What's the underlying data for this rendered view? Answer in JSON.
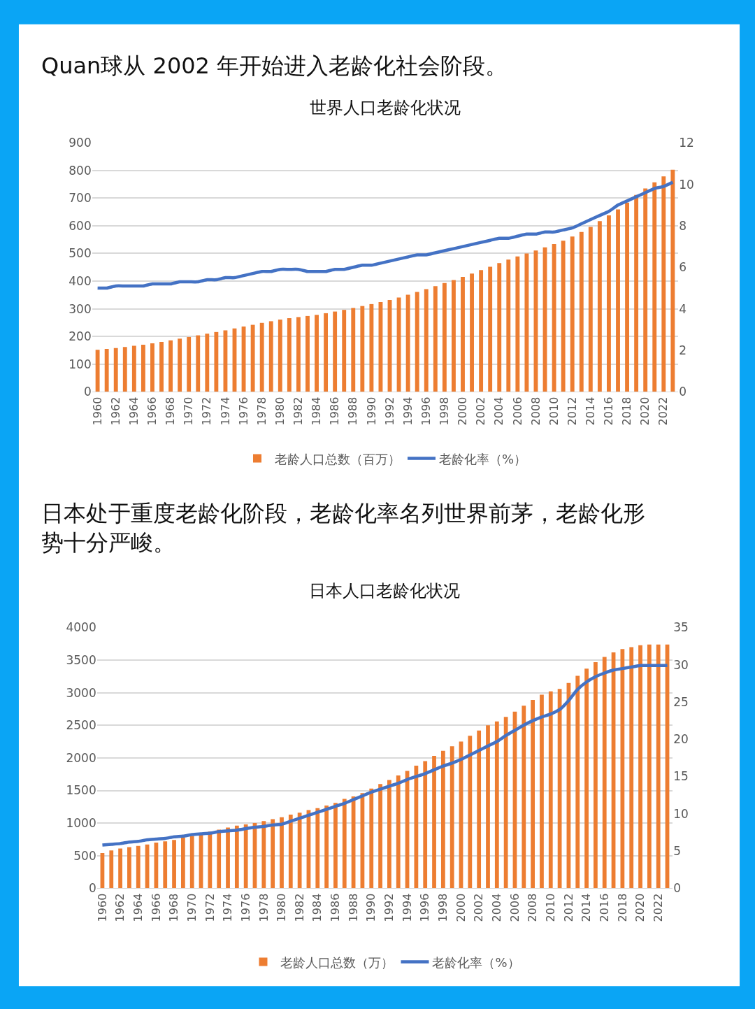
{
  "chart_data": [
    {
      "type": "bar",
      "title": "Quan球从 2002 年开始进入老龄化社会阶段。",
      "subtitle": "世界人口老龄化状况",
      "categories": [
        "1960",
        null,
        "1962",
        null,
        "1964",
        null,
        "1966",
        null,
        "1968",
        null,
        "1970",
        null,
        "1972",
        null,
        "1974",
        null,
        "1976",
        null,
        "1978",
        null,
        "1980",
        null,
        "1982",
        null,
        "1984",
        null,
        "1986",
        null,
        "1988",
        null,
        "1990",
        null,
        "1992",
        null,
        "1994",
        null,
        "1996",
        null,
        "1998",
        null,
        "2000",
        null,
        "2002",
        null,
        "2004",
        null,
        "2006",
        null,
        "2008",
        null,
        "2010",
        null,
        "2012",
        null,
        "2014",
        null,
        "2016",
        null,
        "2018",
        null,
        "2020",
        null,
        "2022",
        null
      ],
      "series": [
        {
          "name": "老龄人口总数（百万）",
          "color": "#ed7d31",
          "values": [
            152,
            155,
            158,
            162,
            166,
            170,
            175,
            180,
            186,
            192,
            198,
            204,
            210,
            216,
            222,
            229,
            236,
            242,
            249,
            255,
            261,
            266,
            270,
            274,
            278,
            284,
            290,
            296,
            303,
            310,
            317,
            324,
            332,
            341,
            351,
            361,
            371,
            382,
            393,
            404,
            415,
            427,
            440,
            452,
            465,
            478,
            489,
            500,
            511,
            522,
            534,
            546,
            561,
            578,
            596,
            617,
            638,
            659,
            684,
            712,
            735,
            757,
            779,
            803
          ]
        },
        {
          "name": "老龄化率（%）",
          "type": "line",
          "axis": "y2",
          "color": "#4472c4",
          "values": [
            5.0,
            5.0,
            5.1,
            5.1,
            5.1,
            5.1,
            5.2,
            5.2,
            5.2,
            5.3,
            5.3,
            5.3,
            5.4,
            5.4,
            5.5,
            5.5,
            5.6,
            5.7,
            5.8,
            5.8,
            5.9,
            5.9,
            5.9,
            5.8,
            5.8,
            5.8,
            5.9,
            5.9,
            6.0,
            6.1,
            6.1,
            6.2,
            6.3,
            6.4,
            6.5,
            6.6,
            6.6,
            6.7,
            6.8,
            6.9,
            7.0,
            7.1,
            7.2,
            7.3,
            7.4,
            7.4,
            7.5,
            7.6,
            7.6,
            7.7,
            7.7,
            7.8,
            7.9,
            8.1,
            8.3,
            8.5,
            8.7,
            9.0,
            9.2,
            9.4,
            9.6,
            9.8,
            9.9,
            10.1
          ]
        }
      ],
      "ylim": [
        0,
        900
      ],
      "yticks": [
        0,
        100,
        200,
        300,
        400,
        500,
        600,
        700,
        800,
        900
      ],
      "y2lim": [
        0,
        12
      ],
      "y2ticks": [
        0,
        2,
        4,
        6,
        8,
        10,
        12
      ],
      "grid": "y",
      "legend": "bottom"
    },
    {
      "type": "bar",
      "title": "日本处于重度老龄化阶段，老龄化率名列世界前茅，老龄化形势十分严峻。",
      "subtitle": "日本人口老龄化状况",
      "categories": [
        "1960",
        null,
        "1962",
        null,
        "1964",
        null,
        "1966",
        null,
        "1968",
        null,
        "1970",
        null,
        "1972",
        null,
        "1974",
        null,
        "1976",
        null,
        "1978",
        null,
        "1980",
        null,
        "1982",
        null,
        "1984",
        null,
        "1986",
        null,
        "1988",
        null,
        "1990",
        null,
        "1992",
        null,
        "1994",
        null,
        "1996",
        null,
        "1998",
        null,
        "2000",
        null,
        "2002",
        null,
        "2004",
        null,
        "2006",
        null,
        "2008",
        null,
        "2010",
        null,
        "2012",
        null,
        "2014",
        null,
        "2016",
        null,
        "2018",
        null,
        "2020",
        null,
        "2022",
        null
      ],
      "series": [
        {
          "name": "老龄人口总数（万）",
          "color": "#ed7d31",
          "values": [
            540,
            580,
            610,
            630,
            650,
            670,
            700,
            720,
            740,
            780,
            800,
            830,
            870,
            900,
            930,
            960,
            980,
            1000,
            1030,
            1060,
            1090,
            1130,
            1160,
            1200,
            1230,
            1270,
            1310,
            1370,
            1410,
            1460,
            1530,
            1600,
            1660,
            1730,
            1800,
            1880,
            1950,
            2030,
            2110,
            2180,
            2250,
            2340,
            2420,
            2500,
            2560,
            2630,
            2710,
            2800,
            2890,
            2970,
            3020,
            3060,
            3150,
            3260,
            3370,
            3470,
            3550,
            3620,
            3670,
            3700,
            3730,
            3740,
            3740,
            3740
          ]
        },
        {
          "name": "老龄化率（%）",
          "type": "line",
          "axis": "y2",
          "color": "#4472c4",
          "values": [
            5.8,
            5.9,
            6.0,
            6.2,
            6.3,
            6.5,
            6.6,
            6.7,
            6.9,
            7.0,
            7.2,
            7.3,
            7.4,
            7.6,
            7.7,
            7.8,
            8.0,
            8.2,
            8.3,
            8.5,
            8.6,
            9.0,
            9.4,
            9.8,
            10.2,
            10.6,
            11.0,
            11.4,
            11.9,
            12.4,
            12.9,
            13.3,
            13.7,
            14.1,
            14.6,
            15.0,
            15.4,
            15.9,
            16.4,
            16.8,
            17.3,
            17.9,
            18.5,
            19.1,
            19.7,
            20.5,
            21.2,
            21.9,
            22.5,
            23.0,
            23.4,
            24.0,
            25.2,
            26.7,
            27.7,
            28.4,
            28.9,
            29.3,
            29.5,
            29.7,
            29.9,
            29.9,
            29.9,
            29.9
          ]
        }
      ],
      "ylim": [
        0,
        4000
      ],
      "yticks": [
        0,
        500,
        1000,
        1500,
        2000,
        2500,
        3000,
        3500,
        4000
      ],
      "y2lim": [
        0,
        35
      ],
      "y2ticks": [
        0,
        5,
        10,
        15,
        20,
        25,
        30,
        35
      ],
      "grid": "y",
      "legend": "bottom"
    }
  ]
}
